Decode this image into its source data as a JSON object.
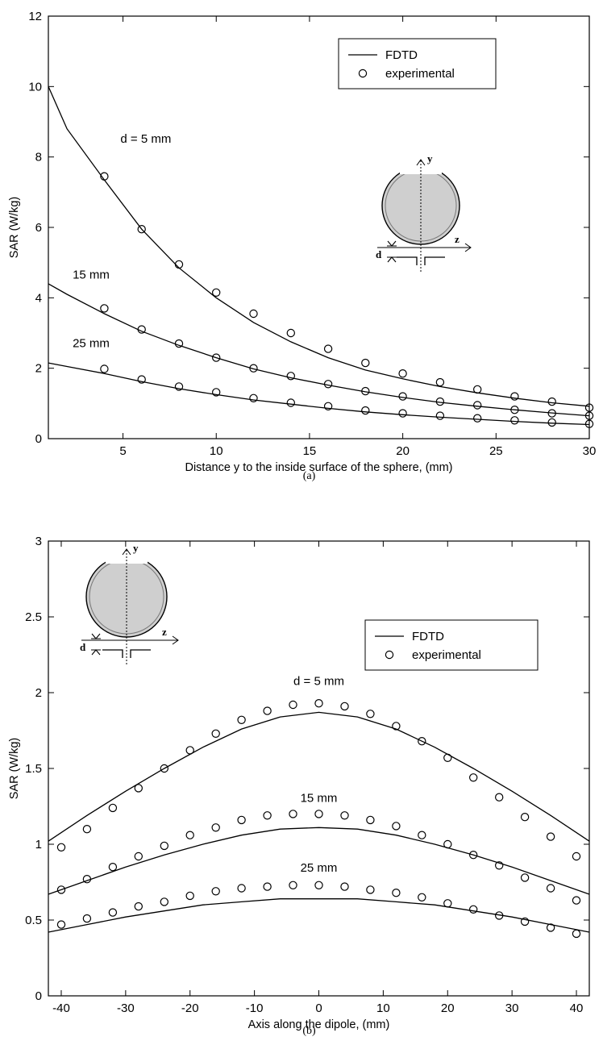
{
  "chart_data": [
    {
      "type": "line",
      "caption": "(a)",
      "xlabel": "Distance y to the inside surface of the sphere, (mm)",
      "ylabel": "SAR (W/kg)",
      "xlim": [
        1,
        30
      ],
      "ylim": [
        0,
        12
      ],
      "xticks": [
        5,
        10,
        15,
        20,
        25,
        30
      ],
      "yticks": [
        0,
        2,
        4,
        6,
        8,
        10,
        12
      ],
      "grid": false,
      "legend_position": "top-right",
      "legend": [
        "FDTD",
        "experimental"
      ],
      "series": [
        {
          "name": "FDTD",
          "label": "d = 5 mm",
          "x": [
            1,
            2,
            4,
            6,
            8,
            10,
            12,
            14,
            16,
            18,
            20,
            22,
            24,
            26,
            28,
            30
          ],
          "y": [
            10.0,
            8.8,
            7.35,
            5.95,
            4.85,
            4.0,
            3.3,
            2.75,
            2.3,
            1.95,
            1.7,
            1.48,
            1.3,
            1.15,
            1.02,
            0.92
          ]
        },
        {
          "name": "experimental",
          "label": "d = 5 mm",
          "x": [
            4,
            6,
            8,
            10,
            12,
            14,
            16,
            18,
            20,
            22,
            24,
            26,
            28,
            30
          ],
          "y": [
            7.45,
            5.95,
            4.95,
            4.15,
            3.55,
            3.0,
            2.55,
            2.15,
            1.85,
            1.6,
            1.4,
            1.2,
            1.05,
            0.88
          ]
        },
        {
          "name": "FDTD",
          "label": "15 mm",
          "x": [
            1,
            2,
            4,
            6,
            8,
            10,
            12,
            14,
            16,
            18,
            20,
            22,
            24,
            26,
            28,
            30
          ],
          "y": [
            4.4,
            4.1,
            3.55,
            3.05,
            2.65,
            2.3,
            1.98,
            1.73,
            1.52,
            1.33,
            1.17,
            1.03,
            0.92,
            0.82,
            0.73,
            0.65
          ]
        },
        {
          "name": "experimental",
          "label": "15 mm",
          "x": [
            4,
            6,
            8,
            10,
            12,
            14,
            16,
            18,
            20,
            22,
            24,
            26,
            28,
            30
          ],
          "y": [
            3.7,
            3.1,
            2.7,
            2.3,
            2.0,
            1.78,
            1.55,
            1.35,
            1.2,
            1.05,
            0.95,
            0.82,
            0.72,
            0.65
          ]
        },
        {
          "name": "FDTD",
          "label": "25 mm",
          "x": [
            1,
            2,
            4,
            6,
            8,
            10,
            12,
            14,
            16,
            18,
            20,
            22,
            24,
            26,
            28,
            30
          ],
          "y": [
            2.15,
            2.05,
            1.85,
            1.62,
            1.42,
            1.25,
            1.1,
            0.98,
            0.86,
            0.76,
            0.68,
            0.61,
            0.55,
            0.49,
            0.44,
            0.4
          ]
        },
        {
          "name": "experimental",
          "label": "25 mm",
          "x": [
            4,
            6,
            8,
            10,
            12,
            14,
            16,
            18,
            20,
            22,
            24,
            26,
            28,
            30
          ],
          "y": [
            1.98,
            1.68,
            1.48,
            1.32,
            1.15,
            1.02,
            0.92,
            0.8,
            0.72,
            0.65,
            0.58,
            0.52,
            0.46,
            0.42
          ]
        }
      ]
    },
    {
      "type": "line",
      "caption": "(b)",
      "xlabel": "Axis along the dipole, (mm)",
      "ylabel": "SAR (W/kg)",
      "xlim": [
        -42,
        42
      ],
      "ylim": [
        0,
        3
      ],
      "xticks": [
        -40,
        -30,
        -20,
        -10,
        0,
        10,
        20,
        30,
        40
      ],
      "yticks": [
        0,
        0.5,
        1,
        1.5,
        2,
        2.5,
        3
      ],
      "grid": false,
      "legend_position": "top-right",
      "legend": [
        "FDTD",
        "experimental"
      ],
      "series": [
        {
          "name": "FDTD",
          "label": "d = 5 mm",
          "x": [
            -42,
            -36,
            -30,
            -24,
            -18,
            -12,
            -6,
            0,
            6,
            12,
            18,
            24,
            30,
            36,
            42
          ],
          "y": [
            1.02,
            1.19,
            1.35,
            1.5,
            1.64,
            1.76,
            1.84,
            1.87,
            1.84,
            1.76,
            1.64,
            1.5,
            1.35,
            1.19,
            1.02
          ]
        },
        {
          "name": "experimental",
          "label": "d = 5 mm",
          "x": [
            -40,
            -36,
            -32,
            -28,
            -24,
            -20,
            -16,
            -12,
            -8,
            -4,
            0,
            4,
            8,
            12,
            16,
            20,
            24,
            28,
            32,
            36,
            40
          ],
          "y": [
            0.98,
            1.1,
            1.24,
            1.37,
            1.5,
            1.62,
            1.73,
            1.82,
            1.88,
            1.92,
            1.93,
            1.91,
            1.86,
            1.78,
            1.68,
            1.57,
            1.44,
            1.31,
            1.18,
            1.05,
            0.92
          ]
        },
        {
          "name": "FDTD",
          "label": "15 mm",
          "x": [
            -42,
            -36,
            -30,
            -24,
            -18,
            -12,
            -6,
            0,
            6,
            12,
            18,
            24,
            30,
            36,
            42
          ],
          "y": [
            0.67,
            0.76,
            0.85,
            0.93,
            1.0,
            1.06,
            1.1,
            1.11,
            1.1,
            1.06,
            1.0,
            0.93,
            0.85,
            0.76,
            0.67
          ]
        },
        {
          "name": "experimental",
          "label": "15 mm",
          "x": [
            -40,
            -36,
            -32,
            -28,
            -24,
            -20,
            -16,
            -12,
            -8,
            -4,
            0,
            4,
            8,
            12,
            16,
            20,
            24,
            28,
            32,
            36,
            40
          ],
          "y": [
            0.7,
            0.77,
            0.85,
            0.92,
            0.99,
            1.06,
            1.11,
            1.16,
            1.19,
            1.2,
            1.2,
            1.19,
            1.16,
            1.12,
            1.06,
            1.0,
            0.93,
            0.86,
            0.78,
            0.71,
            0.63
          ]
        },
        {
          "name": "FDTD",
          "label": "25 mm",
          "x": [
            -42,
            -36,
            -30,
            -24,
            -18,
            -12,
            -6,
            0,
            6,
            12,
            18,
            24,
            30,
            36,
            42
          ],
          "y": [
            0.42,
            0.47,
            0.52,
            0.56,
            0.6,
            0.62,
            0.64,
            0.64,
            0.64,
            0.62,
            0.6,
            0.56,
            0.52,
            0.47,
            0.42
          ]
        },
        {
          "name": "experimental",
          "label": "25 mm",
          "x": [
            -40,
            -36,
            -32,
            -28,
            -24,
            -20,
            -16,
            -12,
            -8,
            -4,
            0,
            4,
            8,
            12,
            16,
            20,
            24,
            28,
            32,
            36,
            40
          ],
          "y": [
            0.47,
            0.51,
            0.55,
            0.59,
            0.62,
            0.66,
            0.69,
            0.71,
            0.72,
            0.73,
            0.73,
            0.72,
            0.7,
            0.68,
            0.65,
            0.61,
            0.57,
            0.53,
            0.49,
            0.45,
            0.41
          ]
        }
      ]
    }
  ],
  "inset": {
    "y_axis": "y",
    "z_axis": "z",
    "gap_label": "d"
  }
}
